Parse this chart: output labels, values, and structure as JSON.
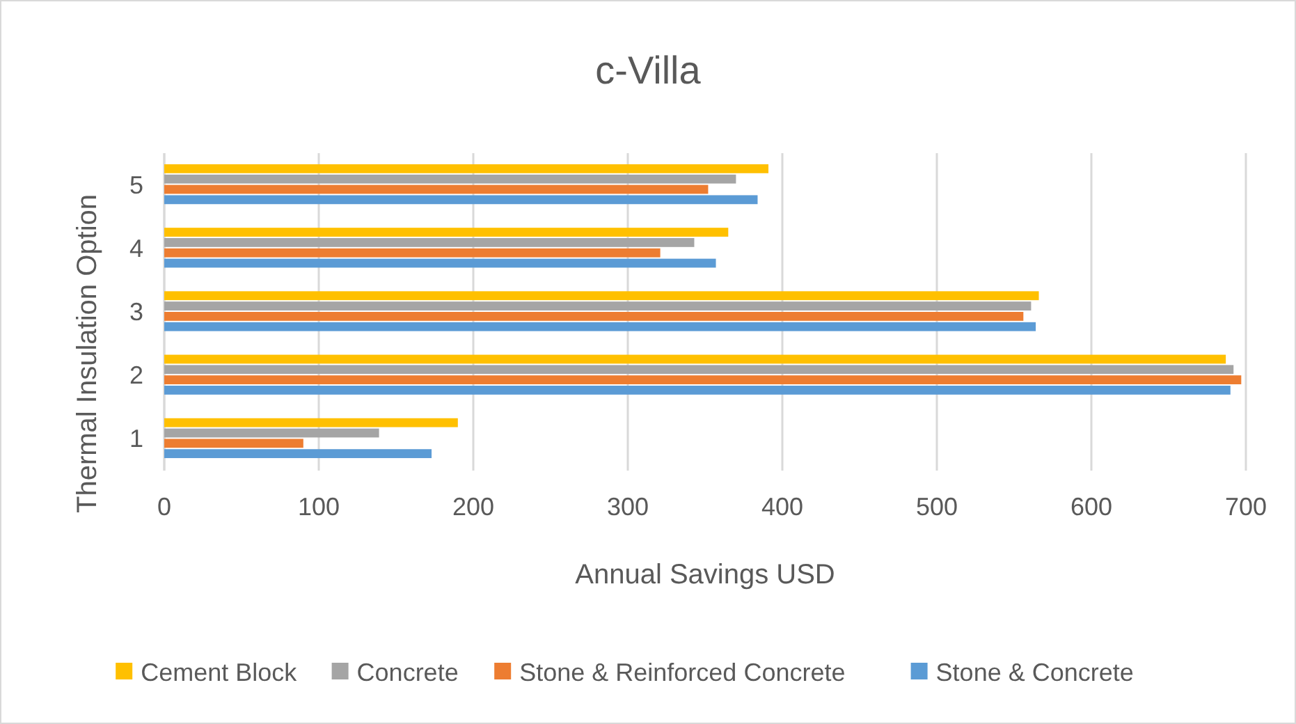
{
  "chart_data": {
    "type": "bar",
    "orientation": "horizontal",
    "title": "c-Villa",
    "xlabel": "Annual Savings USD",
    "ylabel": "Thermal Insulation Option",
    "categories": [
      "5",
      "4",
      "3",
      "2",
      "1"
    ],
    "series": [
      {
        "name": "Cement Block",
        "color": "#ffc000",
        "values": [
          391,
          365,
          566,
          687,
          190
        ]
      },
      {
        "name": "Concrete",
        "color": "#a5a5a5",
        "values": [
          370,
          343,
          561,
          692,
          139
        ]
      },
      {
        "name": "Stone & Reinforced Concrete",
        "color": "#ed7d31",
        "values": [
          352,
          321,
          556,
          697,
          90
        ]
      },
      {
        "name": "Stone & Concrete",
        "color": "#5b9bd5",
        "values": [
          384,
          357,
          564,
          690,
          173
        ]
      }
    ],
    "xlim": [
      0,
      700
    ],
    "xticks": [
      0,
      100,
      200,
      300,
      400,
      500,
      600,
      700
    ],
    "grid": "x",
    "legend": "bottom"
  }
}
